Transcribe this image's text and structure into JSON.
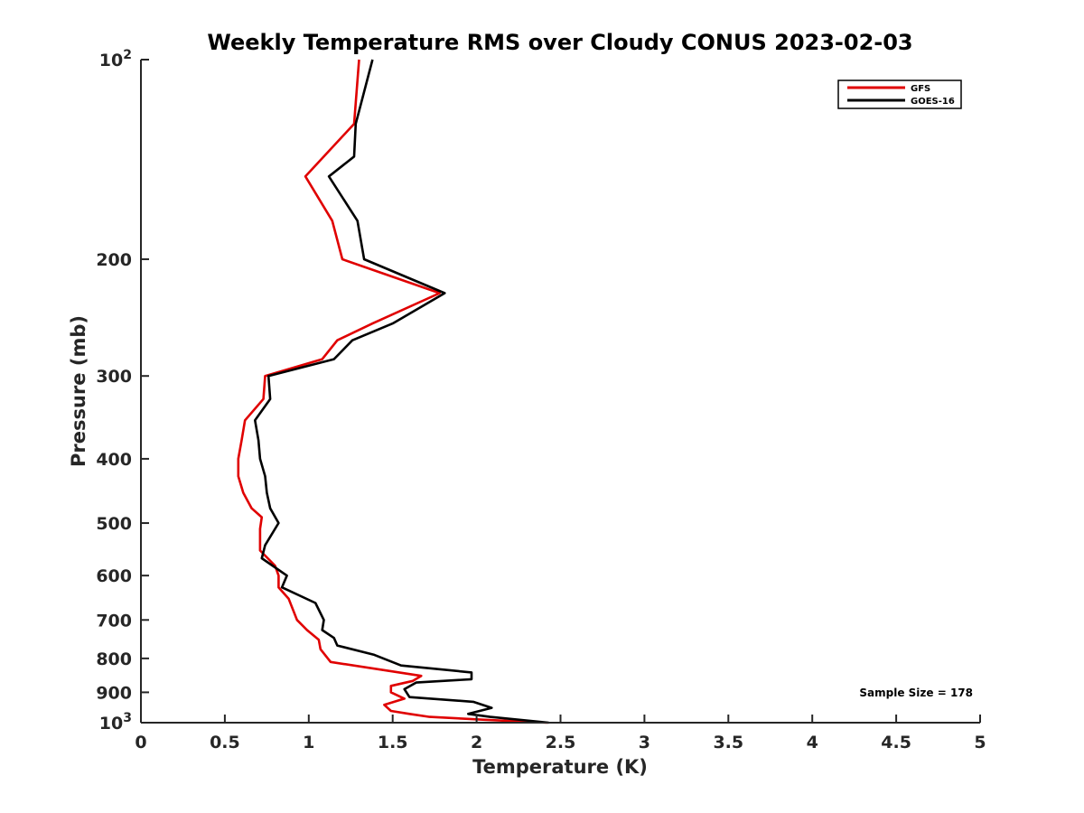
{
  "chart_data": {
    "type": "line",
    "title": "Weekly Temperature RMS over Cloudy CONUS 2023-02-03",
    "xlabel": "Temperature (K)",
    "ylabel": "Pressure (mb)",
    "xlim": [
      0,
      5
    ],
    "ylim": [
      100,
      1000
    ],
    "y_scale": "log",
    "y_reversed": true,
    "x_ticks": [
      0,
      0.5,
      1,
      1.5,
      2,
      2.5,
      3,
      3.5,
      4,
      4.5,
      5
    ],
    "x_tick_labels": [
      "0",
      "0.5",
      "1",
      "1.5",
      "2",
      "2.5",
      "3",
      "3.5",
      "4",
      "4.5",
      "5"
    ],
    "y_ticks": [
      {
        "value": 100,
        "base": "10",
        "exp": "2"
      },
      {
        "value": 200,
        "text": "200"
      },
      {
        "value": 300,
        "text": "300"
      },
      {
        "value": 400,
        "text": "400"
      },
      {
        "value": 500,
        "text": "500"
      },
      {
        "value": 600,
        "text": "600"
      },
      {
        "value": 700,
        "text": "700"
      },
      {
        "value": 800,
        "text": "800"
      },
      {
        "value": 900,
        "text": "900"
      },
      {
        "value": 1000,
        "base": "10",
        "exp": "3"
      }
    ],
    "legend_position": "top-right",
    "grid": false,
    "annotation": "Sample Size = 178",
    "series": [
      {
        "name": "GFS",
        "color": "#e00000",
        "points": [
          [
            1.3,
            100
          ],
          [
            1.27,
            125
          ],
          [
            0.98,
            150
          ],
          [
            1.14,
            175
          ],
          [
            1.2,
            200
          ],
          [
            1.78,
            225
          ],
          [
            1.38,
            250
          ],
          [
            1.17,
            265
          ],
          [
            1.08,
            283
          ],
          [
            0.74,
            300
          ],
          [
            0.73,
            325
          ],
          [
            0.62,
            350
          ],
          [
            0.6,
            375
          ],
          [
            0.58,
            400
          ],
          [
            0.58,
            425
          ],
          [
            0.61,
            450
          ],
          [
            0.66,
            475
          ],
          [
            0.72,
            490
          ],
          [
            0.71,
            510
          ],
          [
            0.71,
            550
          ],
          [
            0.8,
            580
          ],
          [
            0.82,
            600
          ],
          [
            0.82,
            625
          ],
          [
            0.88,
            650
          ],
          [
            0.93,
            700
          ],
          [
            0.99,
            725
          ],
          [
            1.06,
            750
          ],
          [
            1.07,
            775
          ],
          [
            1.13,
            810
          ],
          [
            1.67,
            850
          ],
          [
            1.62,
            865
          ],
          [
            1.49,
            880
          ],
          [
            1.49,
            900
          ],
          [
            1.57,
            920
          ],
          [
            1.45,
            940
          ],
          [
            1.49,
            960
          ],
          [
            1.6,
            970
          ],
          [
            1.72,
            980
          ],
          [
            2.05,
            990
          ],
          [
            2.42,
            1000
          ]
        ]
      },
      {
        "name": "GOES-16",
        "color": "#000000",
        "points": [
          [
            1.38,
            100
          ],
          [
            1.28,
            125
          ],
          [
            1.27,
            140
          ],
          [
            1.12,
            150
          ],
          [
            1.29,
            175
          ],
          [
            1.33,
            200
          ],
          [
            1.81,
            225
          ],
          [
            1.5,
            250
          ],
          [
            1.26,
            265
          ],
          [
            1.15,
            283
          ],
          [
            0.76,
            300
          ],
          [
            0.77,
            325
          ],
          [
            0.68,
            350
          ],
          [
            0.7,
            375
          ],
          [
            0.71,
            400
          ],
          [
            0.74,
            425
          ],
          [
            0.75,
            450
          ],
          [
            0.77,
            475
          ],
          [
            0.82,
            500
          ],
          [
            0.74,
            540
          ],
          [
            0.72,
            565
          ],
          [
            0.87,
            600
          ],
          [
            0.84,
            625
          ],
          [
            1.04,
            660
          ],
          [
            1.09,
            700
          ],
          [
            1.08,
            725
          ],
          [
            1.15,
            745
          ],
          [
            1.17,
            765
          ],
          [
            1.39,
            790
          ],
          [
            1.55,
            820
          ],
          [
            1.97,
            840
          ],
          [
            1.97,
            860
          ],
          [
            1.64,
            870
          ],
          [
            1.57,
            890
          ],
          [
            1.6,
            915
          ],
          [
            1.98,
            930
          ],
          [
            2.09,
            950
          ],
          [
            1.95,
            970
          ],
          [
            2.08,
            980
          ],
          [
            2.43,
            1000
          ]
        ]
      }
    ]
  }
}
